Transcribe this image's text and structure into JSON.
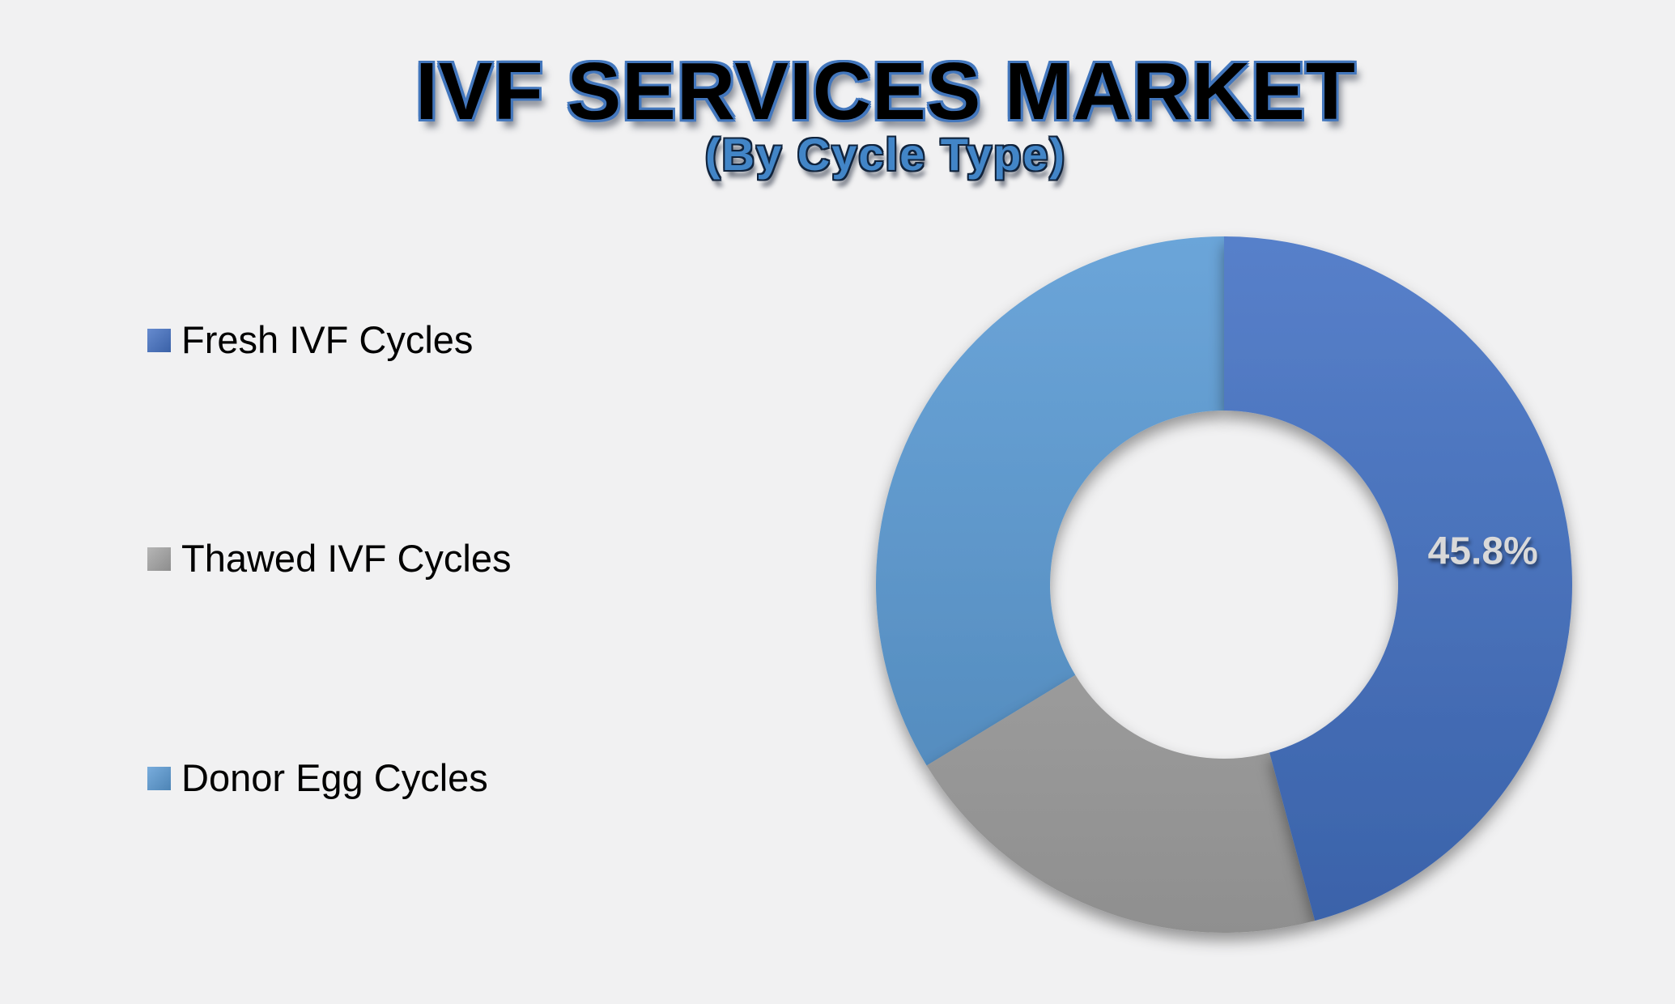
{
  "header": {
    "title": "IVF SERVICES MARKET",
    "subtitle": "(By Cycle Type)"
  },
  "legend": {
    "position": "left",
    "items": [
      {
        "label": "Fresh IVF Cycles",
        "color": "#4472C4"
      },
      {
        "label": "Thawed IVF Cycles",
        "color": "#A6A6A6"
      },
      {
        "label": "Donor Egg Cycles",
        "color": "#5B9BD5"
      }
    ]
  },
  "chart_data": {
    "type": "pie",
    "subtype": "donut",
    "title": "IVF SERVICES MARKET",
    "subtitle": "(By Cycle Type)",
    "categories": [
      "Fresh IVF Cycles",
      "Thawed IVF Cycles",
      "Donor Egg Cycles"
    ],
    "values": [
      45.8,
      20.5,
      33.7
    ],
    "unit": "%",
    "slice_labels": [
      "45.8%",
      "",
      ""
    ],
    "colors": [
      "#4472C4",
      "#A6A6A6",
      "#5B9BD5"
    ],
    "label_color": "#D9D9D9",
    "start_angle_deg": 0,
    "direction": "clockwise",
    "inner_radius_ratio": 0.5,
    "legend_position": "left",
    "background_color": "#F1F1F2"
  },
  "colors": {
    "background": "#F1F1F2",
    "title_fill": "#000000",
    "title_outline": "#4377BD",
    "subtitle_fill": "#4285C7",
    "subtitle_outline": "#10233C",
    "legend_text": "#000000"
  }
}
